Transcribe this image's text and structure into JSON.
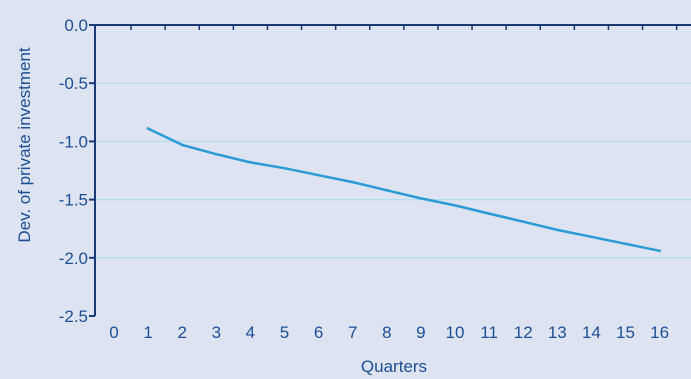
{
  "chart_data": {
    "type": "line",
    "title": "",
    "xlabel": "Quarters",
    "ylabel": "Dev. of private investment",
    "xlim": [
      0,
      16
    ],
    "ylim": [
      -2.5,
      0.0
    ],
    "x_ticks": [
      "0",
      "1",
      "2",
      "3",
      "4",
      "5",
      "6",
      "7",
      "8",
      "9",
      "10",
      "11",
      "12",
      "13",
      "14",
      "15",
      "16"
    ],
    "y_ticks": [
      "0.0",
      "-0.5",
      "-1.0",
      "-1.5",
      "-2.0",
      "-2.5"
    ],
    "y_tick_values": [
      0.0,
      -0.5,
      -1.0,
      -1.5,
      -2.0,
      -2.5
    ],
    "grid": true,
    "legend": "none",
    "colors": {
      "background": "#dde3f1",
      "axis": "#1a3a73",
      "grid": "#a9ddf0",
      "line": "#2b9bd6",
      "text": "#1d4f96"
    },
    "series": [
      {
        "x": [
          1,
          2,
          3,
          4,
          5,
          6,
          7,
          8,
          9,
          10,
          11,
          12,
          13,
          14,
          15,
          16
        ],
        "values": [
          -0.89,
          -1.03,
          -1.11,
          -1.18,
          -1.23,
          -1.29,
          -1.35,
          -1.42,
          -1.49,
          -1.55,
          -1.62,
          -1.69,
          -1.76,
          -1.82,
          -1.88,
          -1.94
        ]
      }
    ]
  }
}
